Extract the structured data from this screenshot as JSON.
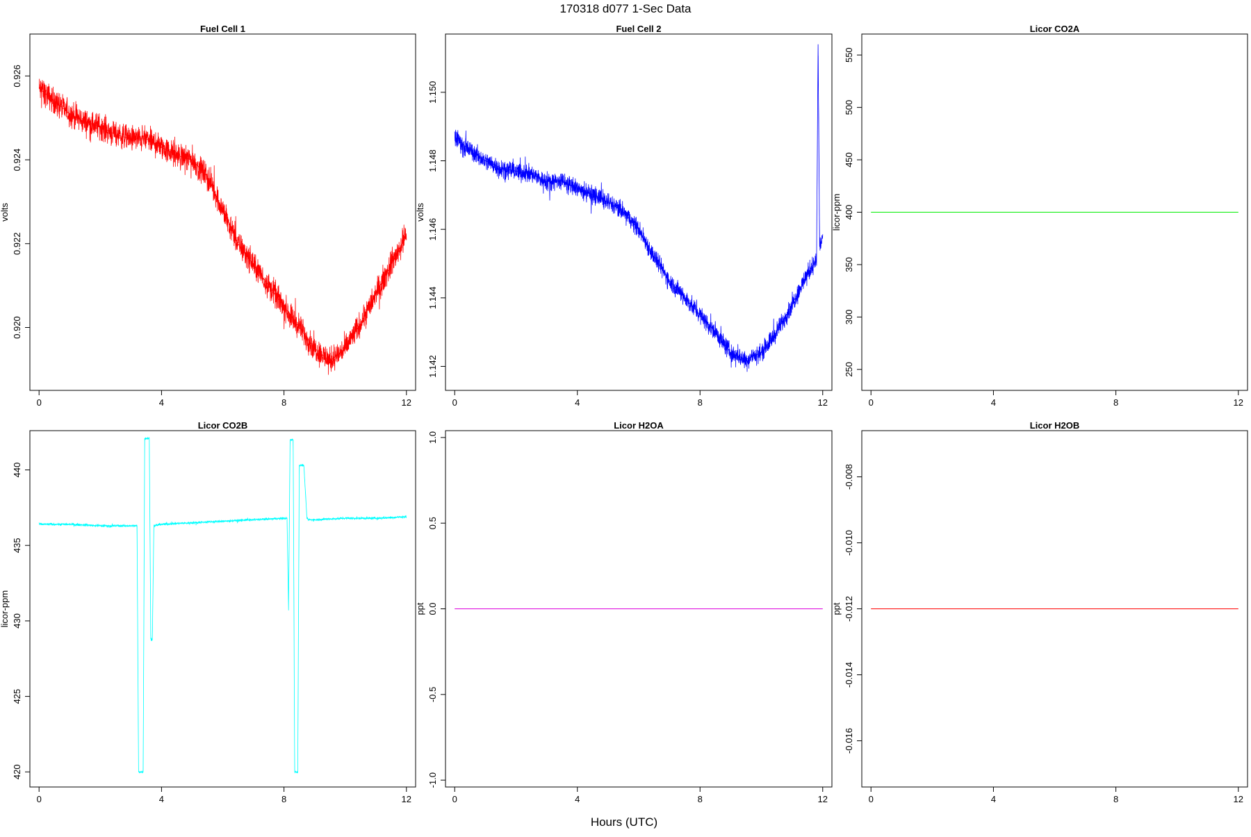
{
  "page": {
    "title": "170318   d077   1-Sec Data",
    "xlabel": "Hours (UTC)"
  },
  "chart_data": [
    {
      "type": "line",
      "title": "Fuel Cell 1",
      "ylabel": "volts",
      "xlabel": "",
      "color": "#ff0000",
      "xlim": [
        -0.3,
        12.3
      ],
      "ylim": [
        0.9185,
        0.927
      ],
      "xticks": [
        "0",
        "4",
        "8",
        "12"
      ],
      "yticks": [
        "0.920",
        "0.922",
        "0.924",
        "0.926"
      ],
      "noise": 0.00045,
      "series": [
        {
          "x": [
            0,
            0.5,
            1,
            1.5,
            2,
            2.5,
            3,
            3.5,
            4,
            4.5,
            5,
            5.5,
            6,
            6.5,
            7,
            7.5,
            8,
            8.5,
            9,
            9.5,
            10,
            10.5,
            11,
            11.5,
            12
          ],
          "values": [
            0.9257,
            0.9254,
            0.9251,
            0.9249,
            0.9248,
            0.9246,
            0.9245,
            0.9245,
            0.9243,
            0.9241,
            0.924,
            0.9236,
            0.9228,
            0.922,
            0.9215,
            0.921,
            0.9205,
            0.92,
            0.9195,
            0.9192,
            0.9195,
            0.9201,
            0.9208,
            0.9215,
            0.9222
          ]
        }
      ]
    },
    {
      "type": "line",
      "title": "Fuel Cell 2",
      "ylabel": "volts",
      "xlabel": "",
      "color": "#0000ff",
      "xlim": [
        -0.3,
        12.3
      ],
      "ylim": [
        1.1413,
        1.1517
      ],
      "xticks": [
        "0",
        "4",
        "8",
        "12"
      ],
      "yticks": [
        "1.142",
        "1.144",
        "1.146",
        "1.148",
        "1.150"
      ],
      "noise": 0.0004,
      "series": [
        {
          "x": [
            0,
            0.5,
            1,
            1.5,
            2,
            2.5,
            3,
            3.5,
            4,
            4.5,
            5,
            5.5,
            6,
            6.5,
            7,
            7.5,
            8,
            8.5,
            9,
            9.5,
            10,
            10.5,
            11,
            11.5,
            11.8,
            11.85,
            11.9,
            12
          ],
          "values": [
            1.1487,
            1.1483,
            1.148,
            1.1478,
            1.1477,
            1.1476,
            1.1474,
            1.1474,
            1.1472,
            1.147,
            1.1468,
            1.1465,
            1.146,
            1.1452,
            1.1445,
            1.144,
            1.1435,
            1.143,
            1.1424,
            1.1422,
            1.1424,
            1.143,
            1.1438,
            1.1447,
            1.1451,
            1.1514,
            1.1455,
            1.1458
          ]
        }
      ]
    },
    {
      "type": "line",
      "title": "Licor CO2A",
      "ylabel": "licor-ppm",
      "xlabel": "",
      "color": "#00ee00",
      "xlim": [
        -0.3,
        12.3
      ],
      "ylim": [
        230,
        570
      ],
      "xticks": [
        "0",
        "4",
        "8",
        "12"
      ],
      "yticks": [
        "250",
        "300",
        "350",
        "400",
        "450",
        "500",
        "550"
      ],
      "noise": 0,
      "series": [
        {
          "x": [
            0,
            12
          ],
          "values": [
            400,
            400
          ]
        }
      ]
    },
    {
      "type": "line",
      "title": "Licor CO2B",
      "ylabel": "licor-ppm",
      "xlabel": "",
      "color": "#00ffff",
      "xlim": [
        -0.3,
        12.3
      ],
      "ylim": [
        419.0,
        442.6
      ],
      "xticks": [
        "0",
        "4",
        "8",
        "12"
      ],
      "yticks": [
        "420",
        "425",
        "430",
        "435",
        "440"
      ],
      "noise": 0.12,
      "series": [
        {
          "x": [
            0,
            1,
            2,
            3.2,
            3.25,
            3.3,
            3.4,
            3.45,
            3.5,
            3.6,
            3.65,
            3.7,
            3.75,
            4,
            5,
            6,
            7,
            8.1,
            8.15,
            8.2,
            8.3,
            8.35,
            8.45,
            8.5,
            8.55,
            8.65,
            8.75,
            8.8,
            9,
            10,
            11,
            12
          ],
          "values": [
            436.4,
            436.4,
            436.3,
            436.3,
            420.0,
            420.0,
            420.0,
            442.1,
            442.1,
            442.1,
            428.8,
            428.8,
            436.3,
            436.4,
            436.5,
            436.6,
            436.7,
            436.8,
            430.7,
            442.0,
            442.0,
            420.0,
            420.0,
            440.3,
            440.3,
            440.3,
            436.8,
            436.7,
            436.7,
            436.8,
            436.8,
            436.9
          ]
        }
      ]
    },
    {
      "type": "line",
      "title": "Licor H2OA",
      "ylabel": "ppt",
      "xlabel": "",
      "color": "#dd00dd",
      "xlim": [
        -0.3,
        12.3
      ],
      "ylim": [
        -1.04,
        1.04
      ],
      "xticks": [
        "0",
        "4",
        "8",
        "12"
      ],
      "yticks": [
        "-1.0",
        "-0.5",
        "0.0",
        "0.5",
        "1.0"
      ],
      "noise": 0,
      "series": [
        {
          "x": [
            0,
            12
          ],
          "values": [
            0,
            0
          ]
        }
      ]
    },
    {
      "type": "line",
      "title": "Licor H2OB",
      "ylabel": "ppt",
      "xlabel": "",
      "color": "#ff0000",
      "xlim": [
        -0.3,
        12.3
      ],
      "ylim": [
        -0.0174,
        -0.0066
      ],
      "xticks": [
        "0",
        "4",
        "8",
        "12"
      ],
      "yticks": [
        "-0.016",
        "-0.014",
        "-0.012",
        "-0.010",
        "-0.008"
      ],
      "noise": 0,
      "series": [
        {
          "x": [
            0,
            12
          ],
          "values": [
            -0.012,
            -0.012
          ]
        }
      ]
    }
  ]
}
